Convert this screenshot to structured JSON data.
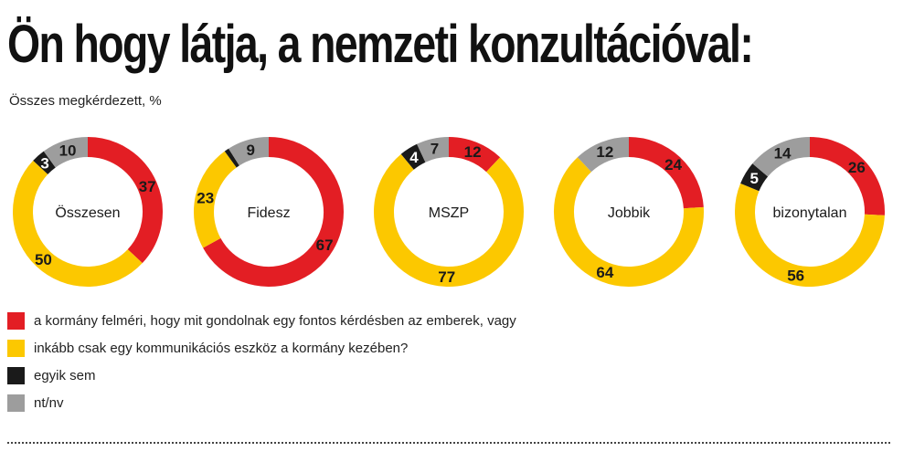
{
  "title": "Ön hogy látja, a nemzeti konzultációval:",
  "subtitle": "Összes megkérdezett, %",
  "colors": {
    "red": "#e31e24",
    "yellow": "#fcc800",
    "black": "#1a1a1a",
    "gray": "#9d9d9d"
  },
  "chart_data": {
    "type": "donut",
    "series": [
      {
        "key": "red",
        "name": "a kormány felméri, hogy mit gondolnak egy fontos kérdésben az emberek, vagy"
      },
      {
        "key": "yellow",
        "name": "inkább csak egy kommunikációs eszköz a kormány kezében?"
      },
      {
        "key": "black",
        "name": "egyik sem"
      },
      {
        "key": "gray",
        "name": "nt/nv"
      }
    ],
    "groups": [
      {
        "label": "Összesen",
        "values": [
          37,
          50,
          3,
          10
        ]
      },
      {
        "label": "Fidesz",
        "values": [
          67,
          23,
          1,
          9
        ]
      },
      {
        "label": "MSZP",
        "values": [
          12,
          77,
          4,
          7
        ]
      },
      {
        "label": "Jobbik",
        "values": [
          24,
          64,
          0,
          12
        ]
      },
      {
        "label": "bizonytalan",
        "values": [
          26,
          56,
          5,
          14
        ]
      }
    ],
    "value_labels": [
      [
        "37",
        "50",
        "3",
        "10"
      ],
      [
        "67",
        "23",
        "",
        "9"
      ],
      [
        "12",
        "77",
        "4",
        "7"
      ],
      [
        "24",
        "64",
        "",
        "12"
      ],
      [
        "26",
        "56",
        "5",
        "14"
      ]
    ]
  }
}
